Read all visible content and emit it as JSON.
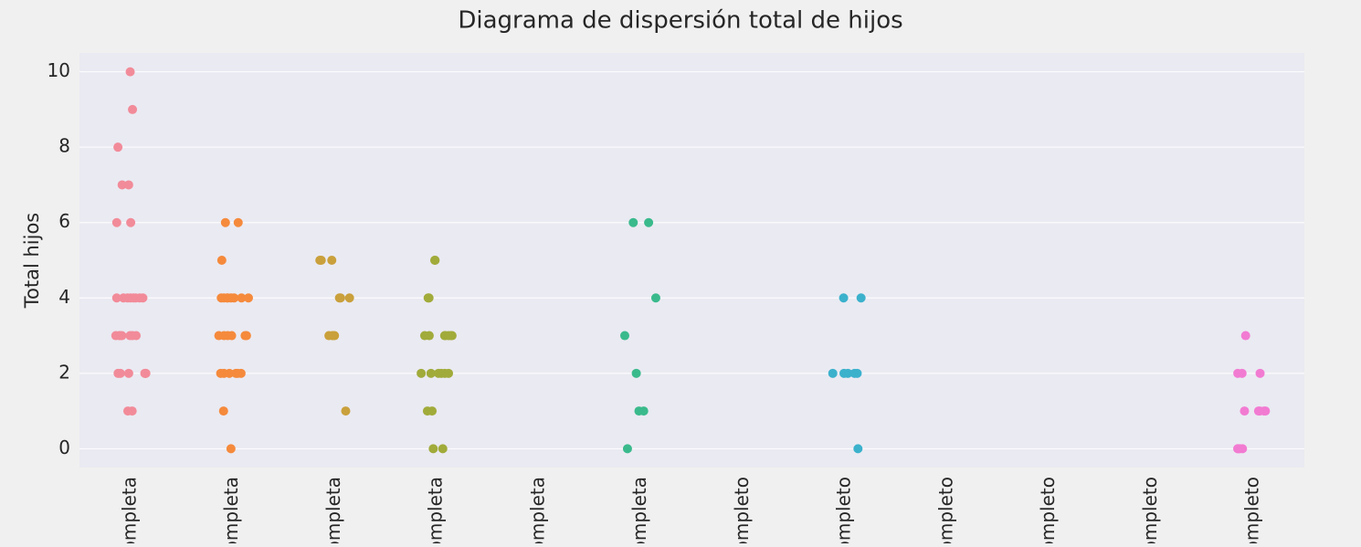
{
  "chart_data": {
    "type": "strip",
    "title": "Diagrama de dispersión total de hijos",
    "ylabel": "Total hijos",
    "categories": [
      "ompleta",
      "ompleta",
      "ompleta",
      "ompleta",
      "ompleta",
      "ompleta",
      "ompleto",
      "ompleto",
      "ompleto",
      "ompleto",
      "ompleto",
      "ompleto"
    ],
    "values": [
      [
        10,
        9,
        8,
        7,
        7,
        6,
        6,
        4,
        4,
        4,
        4,
        4,
        4,
        4,
        4,
        3,
        3,
        3,
        3,
        3,
        3,
        3,
        2,
        2,
        2,
        2,
        2,
        2,
        1,
        1
      ],
      [
        6,
        6,
        5,
        4,
        4,
        4,
        4,
        4,
        4,
        4,
        4,
        3,
        3,
        3,
        3,
        3,
        3,
        2,
        2,
        2,
        2,
        2,
        2,
        1,
        0
      ],
      [
        5,
        5,
        5,
        4,
        4,
        4,
        3,
        3,
        3,
        3,
        1
      ],
      [
        5,
        5,
        4,
        4,
        3,
        3,
        3,
        3,
        3,
        3,
        3,
        2,
        2,
        2,
        2,
        2,
        2,
        1,
        1,
        0,
        0
      ],
      [],
      [
        6,
        6,
        4,
        3,
        2,
        1,
        1,
        0
      ],
      [],
      [
        4,
        4,
        2,
        2,
        2,
        2,
        2,
        0
      ],
      [],
      [],
      [],
      [
        3,
        2,
        2,
        2,
        1,
        1,
        1,
        1,
        1,
        0,
        0,
        0,
        0
      ]
    ],
    "colors": [
      "#f28b99",
      "#f58a3c",
      "#c9a03b",
      "#a1ab3a",
      null,
      "#3aba8c",
      null,
      "#3bb1cc",
      null,
      null,
      null,
      "#f27bd2"
    ],
    "ylim": [
      -0.5,
      10.5
    ],
    "yticks": [
      0,
      2,
      4,
      6,
      8,
      10
    ],
    "grid": true
  }
}
